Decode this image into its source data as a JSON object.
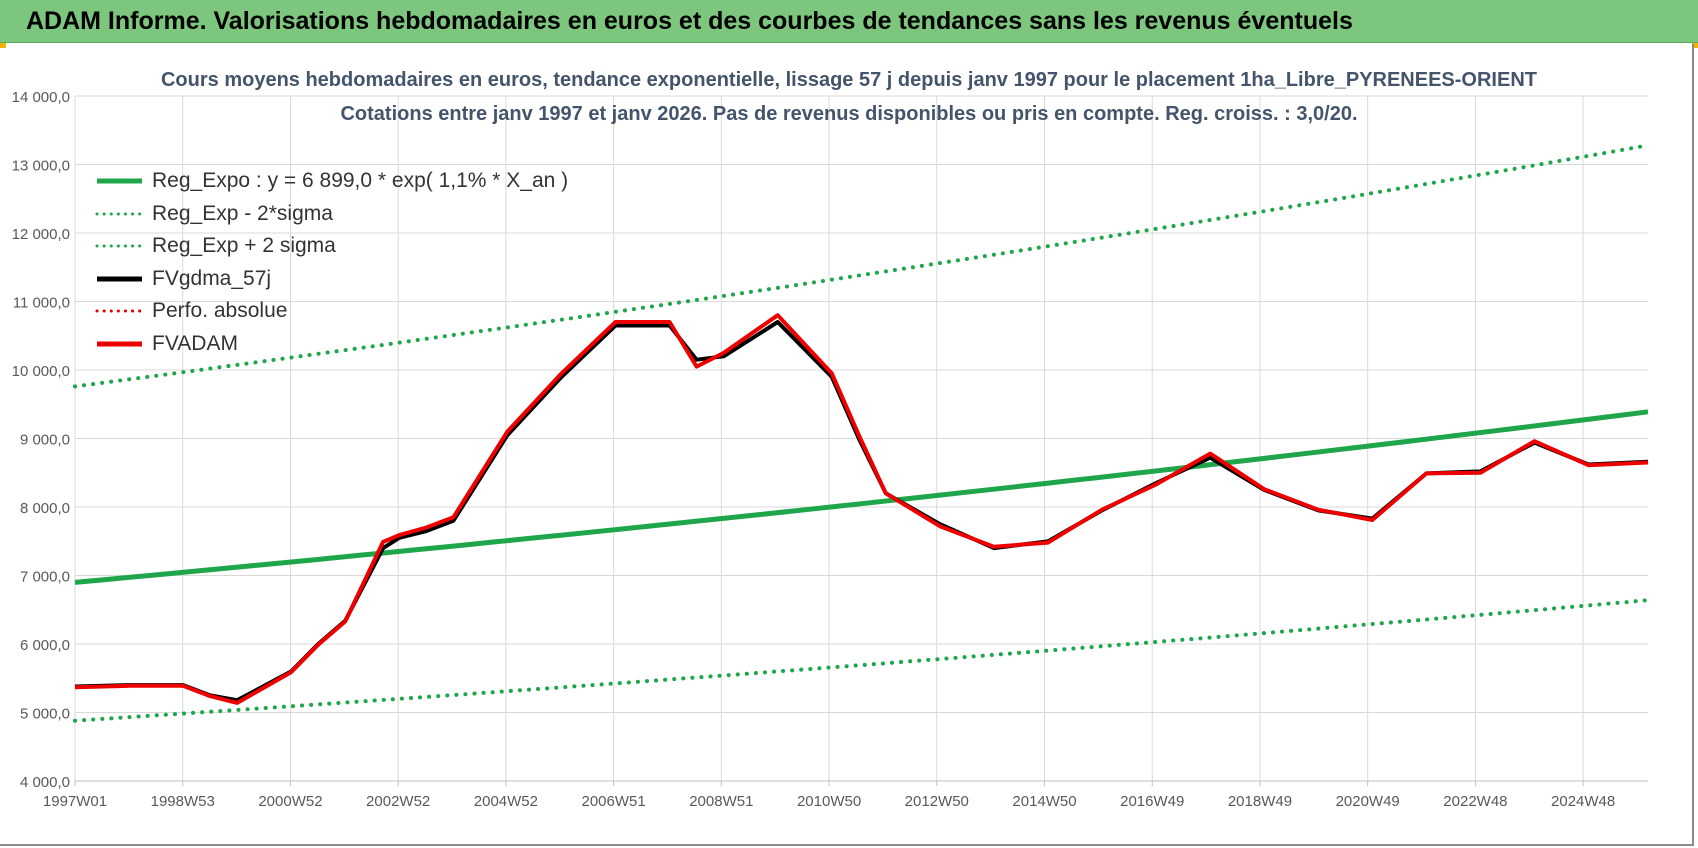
{
  "banner": {
    "title": "ADAM Informe. Valorisations hebdomadaires en euros et des courbes de tendances sans les revenus éventuels"
  },
  "chart_data": {
    "type": "line",
    "title": "Cours moyens hebdomadaires en euros, tendance exponentielle, lissage 57 j depuis janv 1997  pour le placement 1ha_Libre_PYRENEES-ORIENT",
    "subtitle": "Cotations entre janv 1997 et janv 2026. Pas de revenus disponibles ou pris  en compte. Reg. croiss. : 3,0/20.",
    "x_tick_labels": [
      "1997W01",
      "1998W53",
      "2000W52",
      "2002W52",
      "2004W52",
      "2006W51",
      "2008W51",
      "2010W50",
      "2012W50",
      "2014W50",
      "2016W49",
      "2018W49",
      "2020W49",
      "2022W48",
      "2024W48"
    ],
    "y_tick_labels": [
      "4 000,0",
      "5 000,0",
      "6 000,0",
      "7 000,0",
      "8 000,0",
      "9 000,0",
      "10 000,0",
      "11 000,0",
      "12 000,0",
      "13 000,0",
      "14 000,0"
    ],
    "ylim": [
      4000,
      14000
    ],
    "grid": true,
    "legend_position": "top-left",
    "series": [
      {
        "name": "Reg_Expo : y = 6 899,0 * exp( 1,1% *  X_an )",
        "color": "#1fa64a",
        "style": "solid",
        "x": [
          1997.0,
          2026.1
        ],
        "y": [
          6899,
          9390
        ]
      },
      {
        "name": "Reg_Exp - 2*sigma",
        "color": "#1fa64a",
        "style": "dotted",
        "x": [
          1997.0,
          2026.1
        ],
        "y": [
          4880,
          6640
        ]
      },
      {
        "name": "Reg_Exp + 2 sigma",
        "color": "#1fa64a",
        "style": "dotted",
        "x": [
          1997.0,
          2026.1
        ],
        "y": [
          9760,
          13280
        ]
      },
      {
        "name": "FVgdma_57j",
        "color": "#000000",
        "style": "solid",
        "x": [
          1997.0,
          1998.0,
          1999.0,
          1999.5,
          2000.0,
          2001.0,
          2001.5,
          2002.0,
          2002.7,
          2003.0,
          2003.5,
          2004.0,
          2005.0,
          2006.0,
          2007.0,
          2008.0,
          2008.5,
          2009.0,
          2010.0,
          2011.0,
          2011.5,
          2012.0,
          2013.0,
          2014.0,
          2015.0,
          2016.0,
          2017.0,
          2018.0,
          2019.0,
          2020.0,
          2021.0,
          2022.0,
          2023.0,
          2024.0,
          2025.0,
          2026.1
        ],
        "y": [
          5380,
          5400,
          5400,
          5250,
          5180,
          5600,
          6000,
          6340,
          7400,
          7550,
          7650,
          7800,
          9050,
          9900,
          10650,
          10650,
          10150,
          10200,
          10700,
          9900,
          9000,
          8200,
          7750,
          7400,
          7500,
          7950,
          8350,
          8720,
          8250,
          7950,
          7830,
          8490,
          8520,
          8940,
          8620,
          8660
        ]
      },
      {
        "name": "Perfo. absolue",
        "color": "#e00000",
        "style": "dotted",
        "x": [],
        "y": []
      },
      {
        "name": "FVADAM",
        "color": "#ee0000",
        "style": "solid",
        "x": [
          1997.0,
          1998.0,
          1999.0,
          1999.5,
          2000.0,
          2001.0,
          2001.5,
          2002.0,
          2002.7,
          2003.0,
          2003.5,
          2004.0,
          2005.0,
          2006.0,
          2007.0,
          2008.0,
          2008.5,
          2009.0,
          2010.0,
          2011.0,
          2011.5,
          2012.0,
          2013.0,
          2014.0,
          2015.0,
          2016.0,
          2017.0,
          2018.0,
          2019.0,
          2020.0,
          2021.0,
          2022.0,
          2023.0,
          2024.0,
          2025.0,
          2026.1
        ],
        "y": [
          5370,
          5390,
          5390,
          5240,
          5140,
          5590,
          5990,
          6330,
          7490,
          7590,
          7700,
          7850,
          9100,
          9950,
          10700,
          10700,
          10050,
          10250,
          10800,
          9950,
          9050,
          8200,
          7720,
          7420,
          7480,
          7960,
          8330,
          8780,
          8260,
          7960,
          7810,
          8490,
          8500,
          8960,
          8610,
          8650
        ]
      }
    ]
  }
}
